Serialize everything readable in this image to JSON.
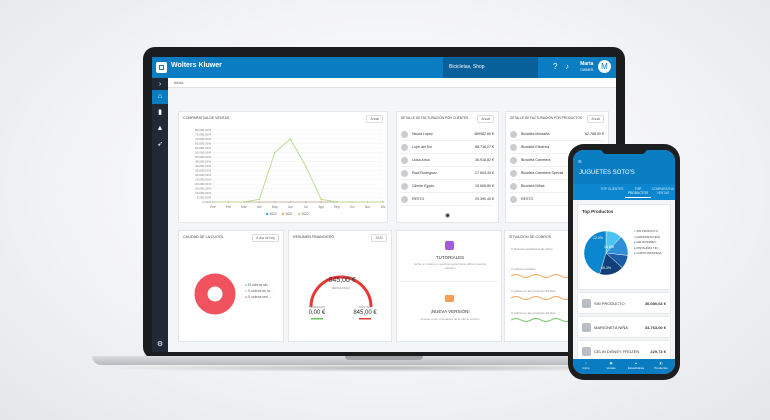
{
  "app": {
    "brand": "Wolters Kluwer",
    "shop": "Bicicletas, Shop",
    "user_name": "Marta",
    "user_role": "OWNER",
    "avatar_initial": "M",
    "breadcrumb": "Inicio"
  },
  "colors": {
    "brand_blue": "#0a7cc1",
    "sidebar_dark": "#1f2a35",
    "line_green": "#b7d98a",
    "donut_red": "#f0535d",
    "gauge_red": "#e53935",
    "sparkline_orange": "#f5a05a",
    "sparkline_green": "#66c55c"
  },
  "cards": {
    "ventas": {
      "title": "Comparativa de ventas",
      "button": "Anual"
    },
    "clientes": {
      "title": "Detalle de facturación por clientes",
      "button": "Anual"
    },
    "productos": {
      "title": "Detalle de facturación por productos",
      "button": "Anual"
    },
    "calidad": {
      "title": "Calidad de la cuota",
      "button": "A día de hoy",
      "legend": [
        "El cobros sin...",
        "X cobros en la...",
        "X cobros ven..."
      ]
    },
    "resumen": {
      "title": "Resumen financiero",
      "button": "2022",
      "center_value": "-845,00 €",
      "center_label": "RESULTADO",
      "left_label": "INGRESOS",
      "left_value": "0,00 €",
      "right_label": "GASTOS",
      "right_value": "845,00 €"
    },
    "tutoriales": {
      "title": "TUTORIALES",
      "text": "Echa un vistazo a nuestras guías para utilizar nuestra solución"
    },
    "nueva": {
      "title": "¡NUEVA VERSIÓN!",
      "text": "Accede a las novedades de la última versión"
    },
    "cobros": {
      "title": "Situación de cobros",
      "lines": [
        "X facturas pendientes de cobro",
        "X cobros vencidos",
        "X cobros en los próximos 30 días",
        "X cobros en los próximos 30 días"
      ]
    }
  },
  "clientes_rows": [
    {
      "name": "Nicola López",
      "value": "489982,60 €"
    },
    {
      "name": "Lupe del Sol",
      "value": "68.736,27 €"
    },
    {
      "name": "Luisa Arica",
      "value": "36.918,82 €"
    },
    {
      "name": "Raúl Rodríguez",
      "value": "17.604,40 €"
    },
    {
      "name": "Cliente Ejpplo",
      "value": "15.606,80 €"
    },
    {
      "name": "RESTO",
      "value": "29.390,40 €"
    }
  ],
  "productos_rows": [
    {
      "name": "Bicicleta Montaña",
      "value": "82.788,00 €"
    },
    {
      "name": "Bicicleta Eléctrica",
      "value": "75.900,00 €"
    },
    {
      "name": "Bicicleta Carretera",
      "value": "32.960,00 €"
    },
    {
      "name": "Bicicleta Carretera Special",
      "value": "25.680,00 €"
    },
    {
      "name": "Bicicleta Niños",
      "value": "12.936,00 €"
    },
    {
      "name": "RESTO",
      "value": "26.880,00 €"
    }
  ],
  "chart_data": {
    "type": "line",
    "categories": [
      "Ene",
      "Feb",
      "Mar",
      "Abr",
      "May",
      "Jun",
      "Jul",
      "Ago",
      "Sep",
      "Oct",
      "Nov",
      "Dic"
    ],
    "y_ticks": [
      "80.000,00 €",
      "75.000,00 €",
      "70.000,00 €",
      "65.000,00 €",
      "60.000,00 €",
      "55.000,00 €",
      "50.000,00 €",
      "45.000,00 €",
      "40.000,00 €",
      "35.000,00 €",
      "30.000,00 €",
      "25.000,00 €",
      "20.000,00 €",
      "15.000,00 €",
      "10.000,00 €",
      "5.000,00 €",
      "0,00 €"
    ],
    "ylim": [
      0,
      80000
    ],
    "series": [
      {
        "name": "2020",
        "color": "#2ea6e0",
        "values": [
          0,
          0,
          0,
          0,
          0,
          0,
          0,
          0,
          0,
          0,
          0,
          0
        ]
      },
      {
        "name": "2021",
        "color": "#f5a05a",
        "values": [
          0,
          0,
          0,
          0,
          0,
          0,
          0,
          0,
          0,
          0,
          0,
          0
        ]
      },
      {
        "name": "2022",
        "color": "#b7d98a",
        "values": [
          0,
          0,
          0,
          3000,
          55000,
          70000,
          40000,
          3000,
          0,
          0,
          0,
          0
        ]
      }
    ],
    "legend_position": "bottom"
  },
  "phone": {
    "title": "JUGUETES SOTO'S",
    "tabs": [
      "TOP CLIENTES",
      "TOP PRODUCTOS",
      "COMPARATIVA VENTAS"
    ],
    "card_title": "Top Productos",
    "pie": {
      "type": "pie",
      "labels": [
        "SIN PRODUCTO",
        "MARIONETA NIÑA",
        "CELIN DISNEY...",
        "PINTAUÑAS TIN...",
        "CORTO PRINCESA"
      ],
      "percent_labels": [
        "12.0%",
        "14.8%",
        "45.3%"
      ],
      "values": [
        12.0,
        14.8,
        10.0,
        17.9,
        45.3
      ],
      "colors": [
        "#4cc3f0",
        "#2f8fd6",
        "#1c5fa8",
        "#123f78",
        "#0b86cf"
      ]
    },
    "products": [
      {
        "name": "SIN PRODUCTO",
        "value": "36.080,63 €"
      },
      {
        "name": "MARIONETA NIÑA",
        "value": "34.763,00 €"
      },
      {
        "name": "CELIN DISNEY FROZEN",
        "value": "229,74 €"
      }
    ],
    "nav": [
      "Inicio",
      "Ventas",
      "Estadísticas",
      "Productos"
    ]
  }
}
